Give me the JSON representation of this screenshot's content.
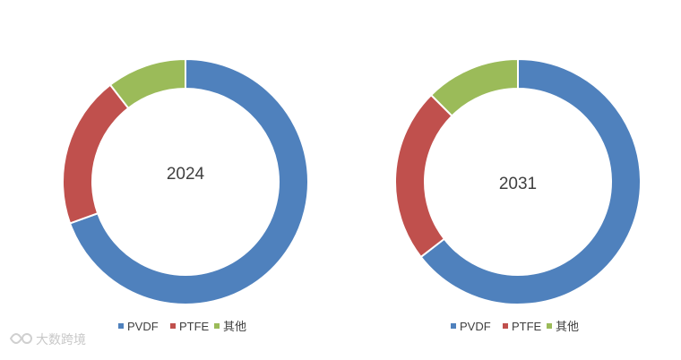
{
  "chart_data": [
    {
      "type": "donut",
      "center_label": "2024",
      "categories": [
        "PVDF",
        "PTFE",
        "其他"
      ],
      "values": [
        69.5,
        20.0,
        10.5
      ],
      "colors": [
        "#4F81BD",
        "#C0504D",
        "#9BBB59"
      ],
      "legend": "bottom"
    },
    {
      "type": "donut",
      "center_label": "2031",
      "categories": [
        "PVDF",
        "PTFE",
        "其他"
      ],
      "values": [
        64.5,
        23.0,
        12.5
      ],
      "colors": [
        "#4F81BD",
        "#C0504D",
        "#9BBB59"
      ],
      "legend": "bottom"
    }
  ],
  "watermark": {
    "text": "大数跨境"
  }
}
